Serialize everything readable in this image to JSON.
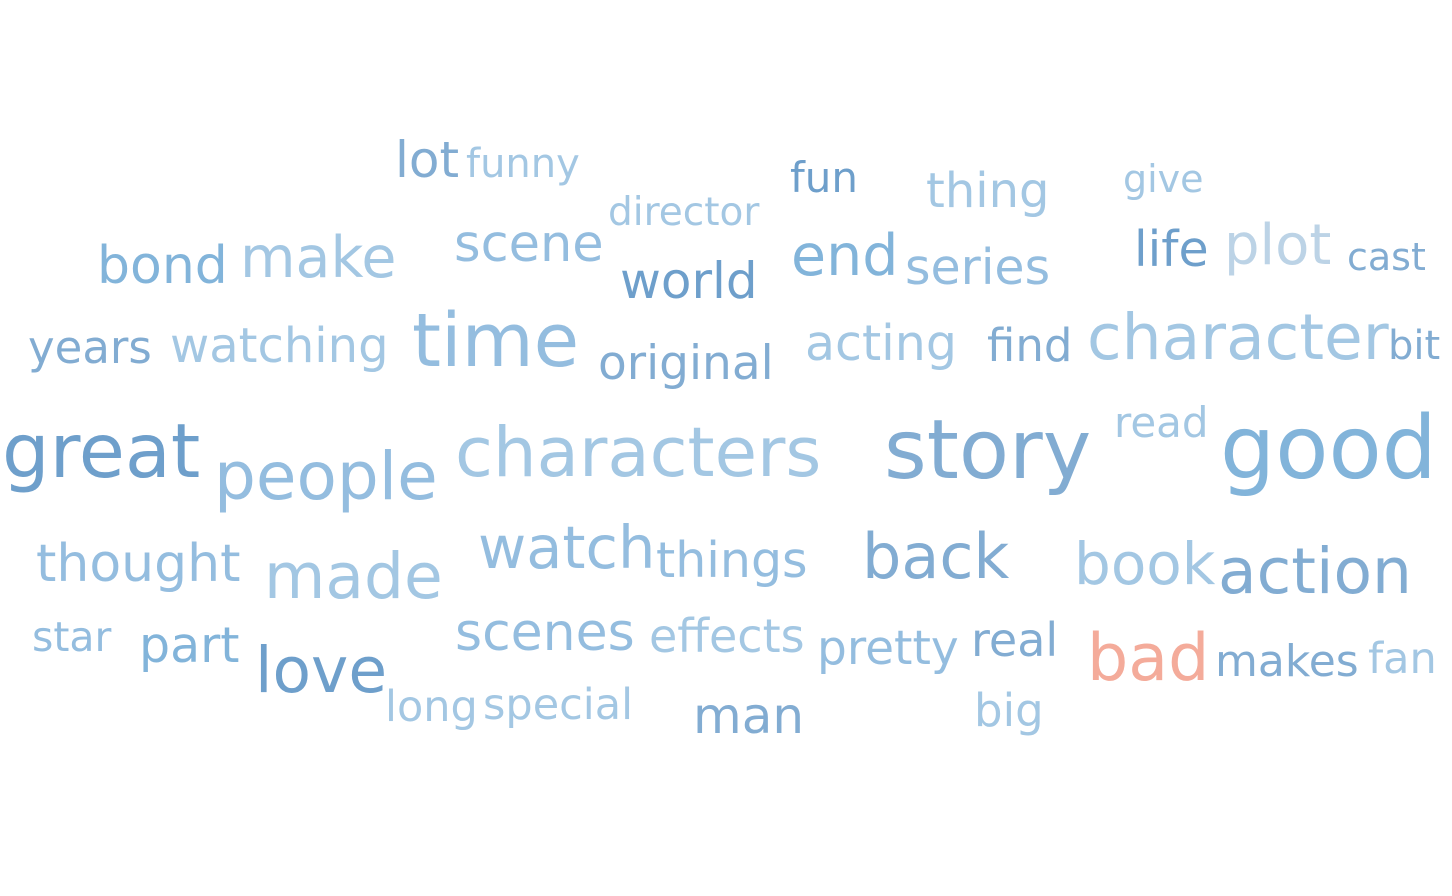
{
  "chart_data": {
    "type": "wordcloud",
    "title": "",
    "words": [
      {
        "text": "lot",
        "color": "#82acd2"
      },
      {
        "text": "funny",
        "color": "#a3c7e3"
      },
      {
        "text": "fun",
        "color": "#6e9fcb"
      },
      {
        "text": "thing",
        "color": "#a3c7e3"
      },
      {
        "text": "give",
        "color": "#a3c7e3"
      },
      {
        "text": "director",
        "color": "#a3c7e3"
      },
      {
        "text": "bond",
        "color": "#82b4da"
      },
      {
        "text": "make",
        "color": "#a3c7e3"
      },
      {
        "text": "scene",
        "color": "#94bddf"
      },
      {
        "text": "end",
        "color": "#82b4da"
      },
      {
        "text": "life",
        "color": "#6e9fcb"
      },
      {
        "text": "plot",
        "color": "#bcd3e6"
      },
      {
        "text": "cast",
        "color": "#82acd2"
      },
      {
        "text": "world",
        "color": "#6e9fcb"
      },
      {
        "text": "series",
        "color": "#94bddf"
      },
      {
        "text": "years",
        "color": "#82acd2"
      },
      {
        "text": "watching",
        "color": "#a3c7e3"
      },
      {
        "text": "time",
        "color": "#94bddf"
      },
      {
        "text": "original",
        "color": "#82acd2"
      },
      {
        "text": "acting",
        "color": "#a3c7e3"
      },
      {
        "text": "find",
        "color": "#82acd2"
      },
      {
        "text": "character",
        "color": "#a3c7e3"
      },
      {
        "text": "bit",
        "color": "#82acd2"
      },
      {
        "text": "great",
        "color": "#6e9fcb"
      },
      {
        "text": "people",
        "color": "#94bddf"
      },
      {
        "text": "characters",
        "color": "#a3c7e3"
      },
      {
        "text": "story",
        "color": "#82acd2"
      },
      {
        "text": "read",
        "color": "#a3c7e3"
      },
      {
        "text": "good",
        "color": "#82b4da"
      },
      {
        "text": "thought",
        "color": "#94bddf"
      },
      {
        "text": "made",
        "color": "#a3c7e3"
      },
      {
        "text": "watch",
        "color": "#94bddf"
      },
      {
        "text": "things",
        "color": "#94bddf"
      },
      {
        "text": "back",
        "color": "#82acd2"
      },
      {
        "text": "book",
        "color": "#a3c7e3"
      },
      {
        "text": "action",
        "color": "#82acd2"
      },
      {
        "text": "star",
        "color": "#94bddf"
      },
      {
        "text": "part",
        "color": "#82b4da"
      },
      {
        "text": "love",
        "color": "#6e9fcb"
      },
      {
        "text": "scenes",
        "color": "#94bddf"
      },
      {
        "text": "effects",
        "color": "#a3c7e3"
      },
      {
        "text": "pretty",
        "color": "#94bddf"
      },
      {
        "text": "real",
        "color": "#82acd2"
      },
      {
        "text": "bad",
        "color": "#f4ab9a"
      },
      {
        "text": "makes",
        "color": "#82acd2"
      },
      {
        "text": "fan",
        "color": "#a3c7e3"
      },
      {
        "text": "long",
        "color": "#a3c7e3"
      },
      {
        "text": "special",
        "color": "#a3c7e3"
      },
      {
        "text": "man",
        "color": "#82acd2"
      },
      {
        "text": "big",
        "color": "#a3c7e3"
      }
    ]
  }
}
